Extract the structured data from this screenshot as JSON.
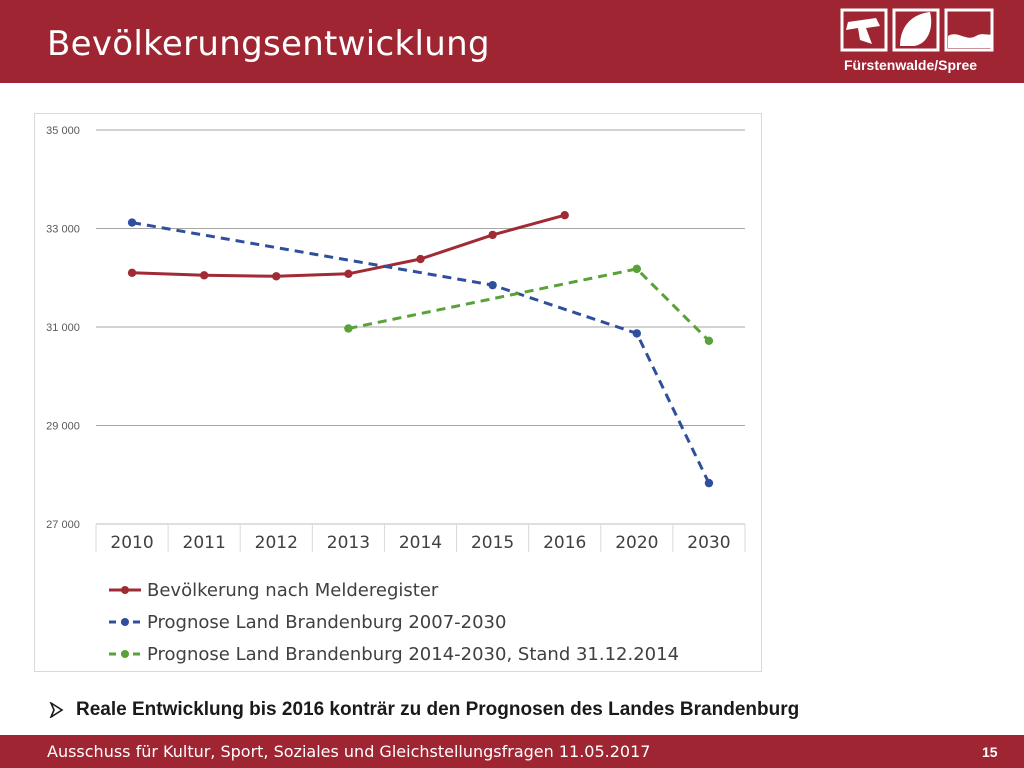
{
  "header": {
    "title": "Bevölkerungsentwicklung",
    "logo_text": "Fürstenwalde/Spree"
  },
  "chart_data": {
    "type": "line",
    "title": "",
    "xlabel": "",
    "ylabel": "",
    "categories": [
      "2010",
      "2011",
      "2012",
      "2013",
      "2014",
      "2015",
      "2016",
      "2020",
      "2030"
    ],
    "ylim": [
      27000,
      35000
    ],
    "yticks": [
      27000,
      29000,
      31000,
      33000,
      35000
    ],
    "ytick_labels": [
      "27 000",
      "29 000",
      "31 000",
      "33 000",
      "35 000"
    ],
    "grid": true,
    "legend_position": "bottom",
    "series": [
      {
        "name": "Bevölkerung nach Melderegister",
        "color": "#a02b35",
        "dash": "solid",
        "values": [
          32100,
          32050,
          32030,
          32080,
          32380,
          32870,
          33270,
          null,
          null
        ]
      },
      {
        "name": "Prognose Land Brandenburg 2007-2030",
        "color": "#2f4f9e",
        "dash": "dashed",
        "values": [
          33120,
          null,
          null,
          null,
          null,
          31850,
          null,
          30870,
          27830
        ]
      },
      {
        "name": "Prognose Land Brandenburg 2014-2030, Stand 31.12.2014",
        "color": "#5aa13a",
        "dash": "dashed",
        "values": [
          null,
          null,
          null,
          30970,
          null,
          null,
          null,
          32180,
          30720
        ]
      }
    ]
  },
  "bullet": {
    "text": "Reale Entwicklung bis 2016 konträr zu den Prognosen des Landes Brandenburg"
  },
  "footer": {
    "text": "Ausschuss für Kultur, Sport, Soziales und Gleichstellungsfragen 11.05.2017",
    "page_number": "15"
  }
}
